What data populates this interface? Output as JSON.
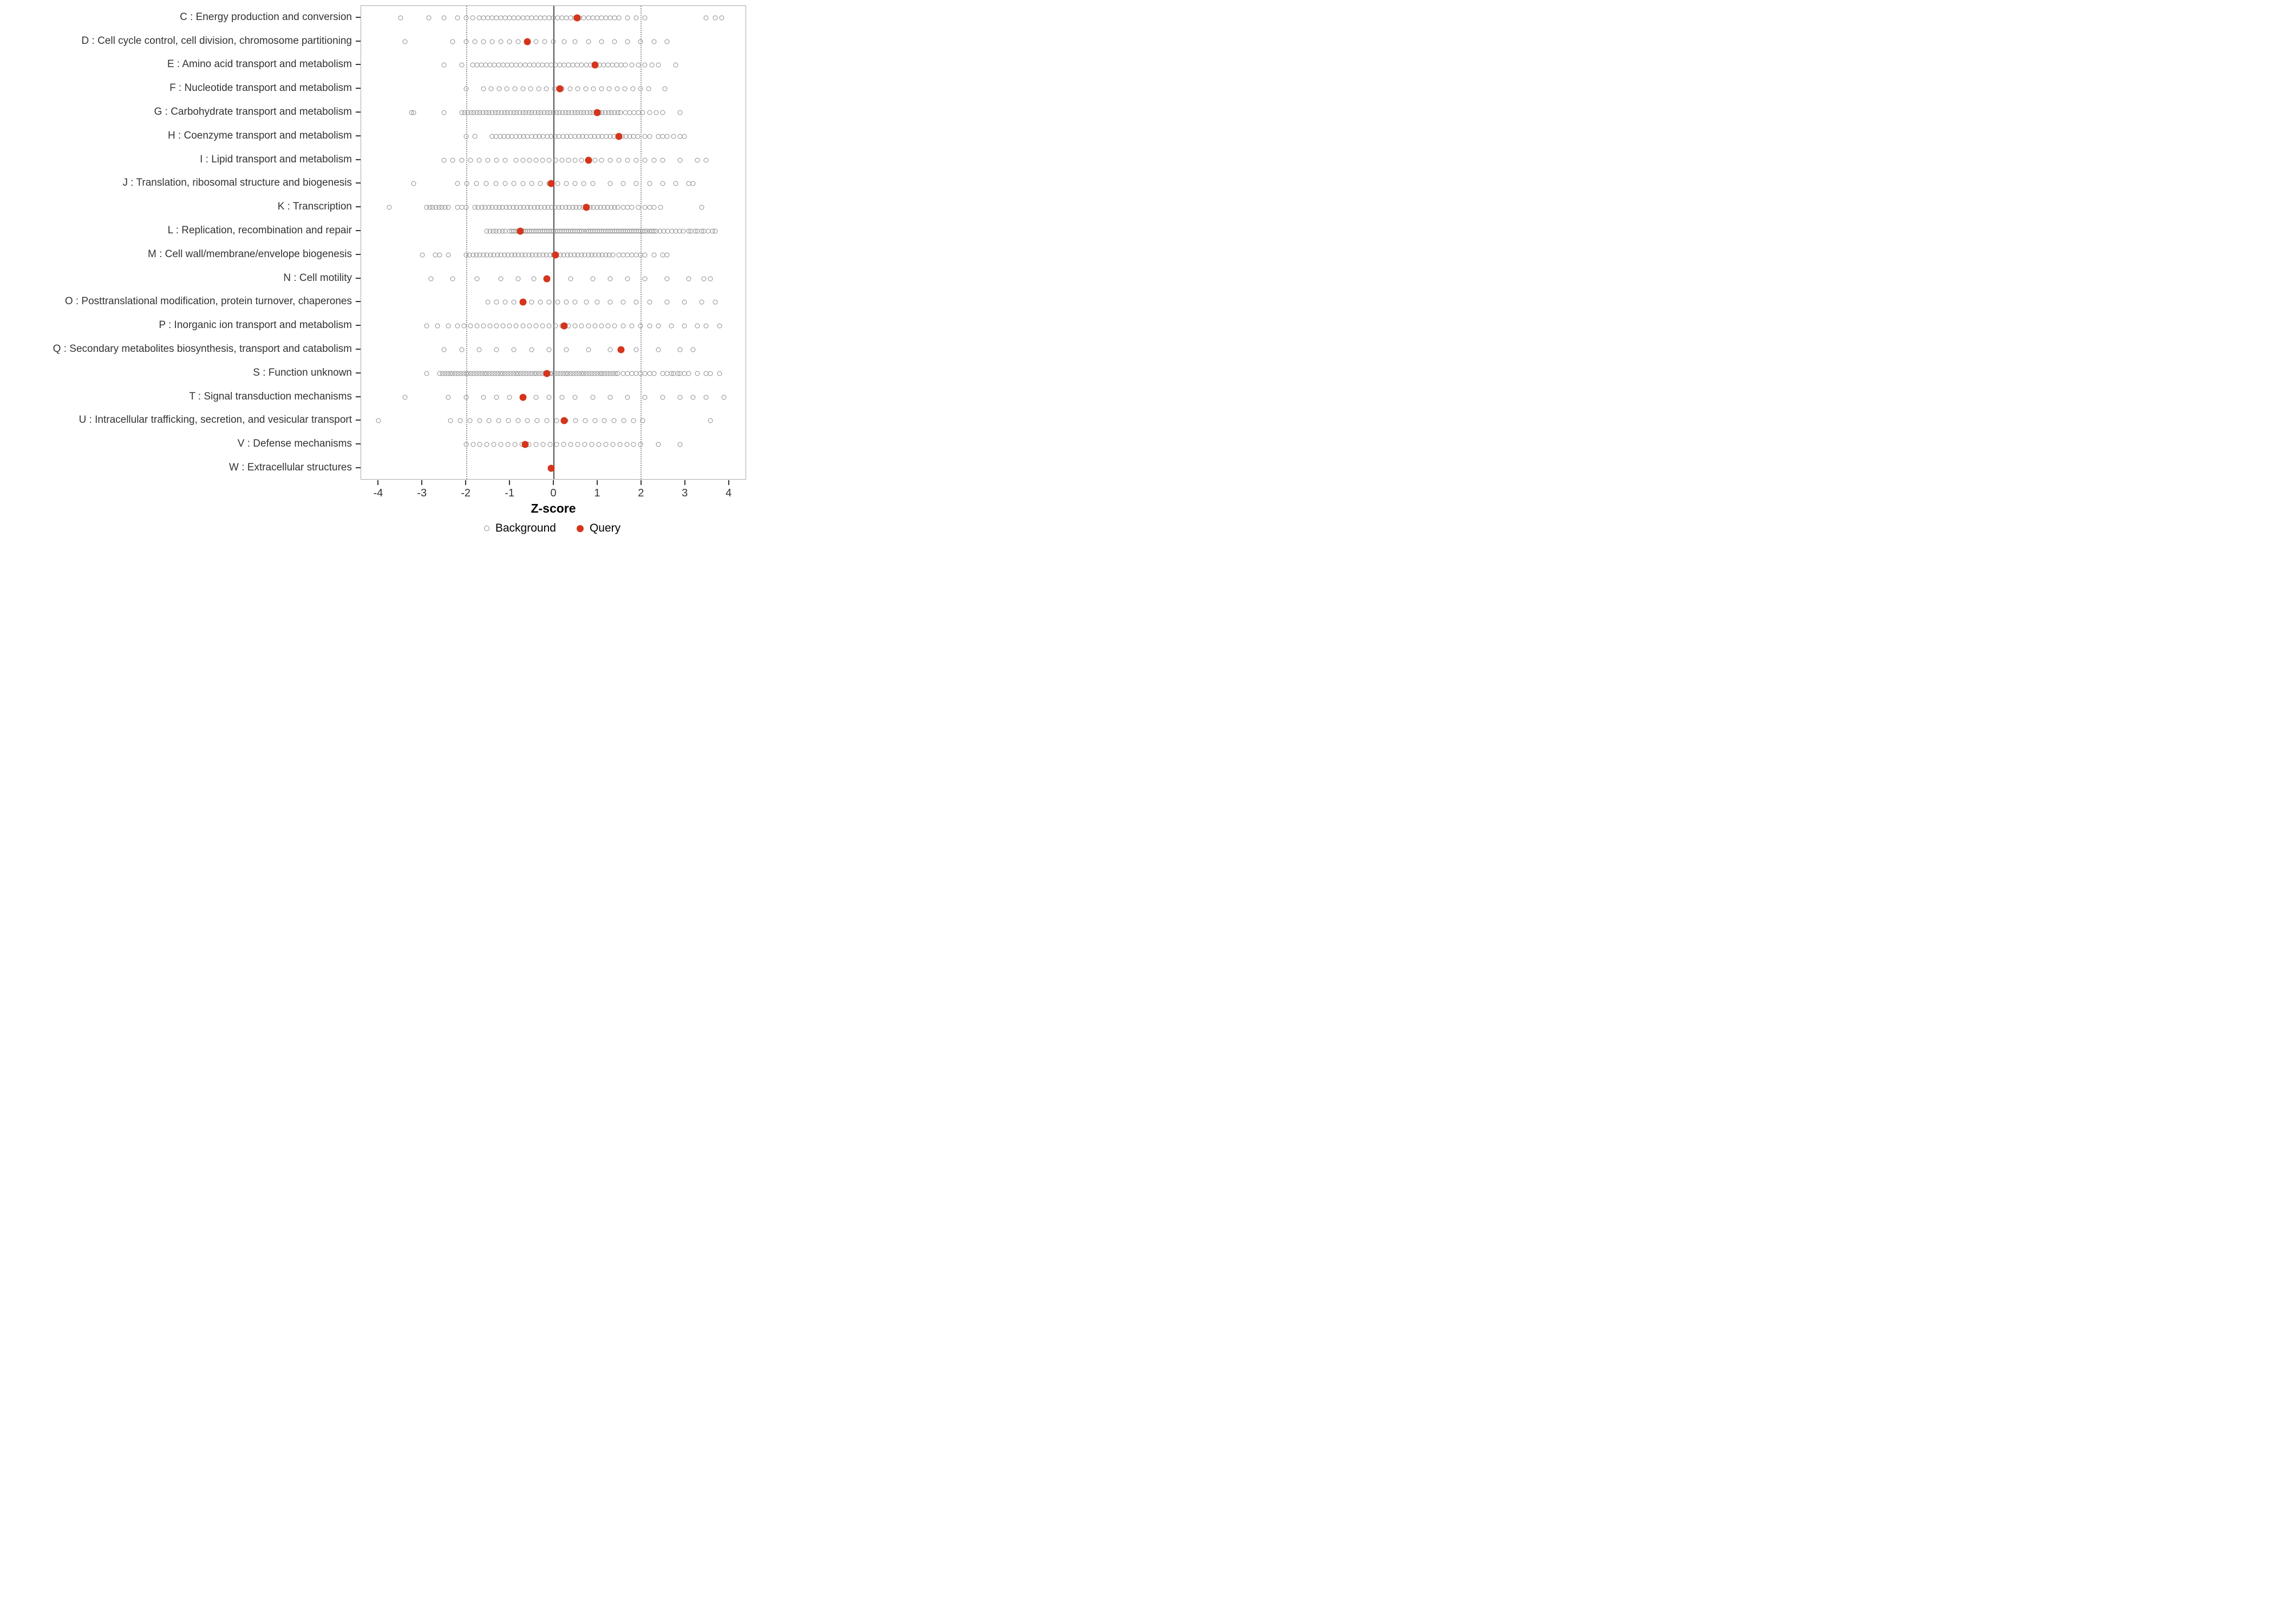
{
  "chart_data": {
    "type": "scatter",
    "title": "",
    "xlabel": "Z-score",
    "ylabel": "",
    "xlim": [
      -4.4,
      4.4
    ],
    "x_ticks": [
      -4,
      -3,
      -2,
      -1,
      0,
      1,
      2,
      3,
      4
    ],
    "grid": false,
    "legend_position": "bottom",
    "legend_labels": {
      "background": "Background",
      "query": "Query"
    },
    "reference_lines": {
      "solid": [
        0
      ],
      "dotted": [
        -2,
        2
      ]
    },
    "colors": {
      "background": "#8a8a8a",
      "query": "#D4351C",
      "zero_line": "#4d4d4d",
      "dotted_line": "#949494",
      "axis_text": "#333333"
    },
    "categories": [
      {
        "code": "C",
        "label": "C : Energy production and conversion",
        "query": 0.55,
        "background": [
          -3.5,
          -2.85,
          -2.5,
          -2.2,
          -2.0,
          -1.85,
          1.7,
          1.9,
          2.1,
          3.5,
          3.7,
          3.85
        ],
        "background_runs": [
          [
            -1.7,
            1.55,
            0.1
          ]
        ]
      },
      {
        "code": "D",
        "label": "D : Cell cycle control, cell division, chromosome partitioning",
        "query": -0.6,
        "background": [
          -3.4,
          -2.3,
          0.25,
          0.5,
          0.8,
          1.1,
          1.4,
          1.7,
          2.0,
          2.3,
          2.6
        ],
        "background_runs": [
          [
            -2.0,
            0.1,
            0.2
          ]
        ]
      },
      {
        "code": "E",
        "label": "E : Amino acid transport and metabolism",
        "query": 0.95,
        "background": [
          -2.5,
          -2.1,
          1.8,
          1.95,
          2.1,
          2.25,
          2.4,
          2.8
        ],
        "background_runs": [
          [
            -1.85,
            1.7,
            0.1
          ]
        ]
      },
      {
        "code": "F",
        "label": "F : Nucleotide transport and metabolism",
        "query": 0.15,
        "background": [
          -2.0,
          2.55
        ],
        "background_runs": [
          [
            -1.6,
            2.3,
            0.18
          ]
        ]
      },
      {
        "code": "G",
        "label": "G : Carbohydrate transport and metabolism",
        "query": 1.0,
        "background": [
          -3.25,
          -3.2,
          -2.5,
          1.65,
          1.75,
          1.85,
          1.95,
          2.05,
          2.2,
          2.35,
          2.5,
          2.9
        ],
        "background_runs": [
          [
            -2.1,
            1.55,
            0.07
          ]
        ]
      },
      {
        "code": "H",
        "label": "H : Coenzyme transport and metabolism",
        "query": 1.5,
        "background": [
          -2.0,
          -1.8,
          2.1,
          2.2,
          2.4,
          2.5,
          2.6,
          2.75,
          2.9,
          3.0
        ],
        "background_runs": [
          [
            -1.4,
            2.0,
            0.09
          ]
        ]
      },
      {
        "code": "I",
        "label": "I : Lipid transport and metabolism",
        "query": 0.8,
        "background": [
          2.9,
          3.3,
          3.5
        ],
        "background_runs": [
          [
            -2.5,
            -1.0,
            0.2
          ],
          [
            -0.85,
            1.1,
            0.15
          ],
          [
            1.3,
            2.5,
            0.2
          ]
        ]
      },
      {
        "code": "J",
        "label": "J : Translation, ribosomal structure and biogenesis",
        "query": -0.05,
        "background": [
          -3.2,
          3.1,
          3.2
        ],
        "background_runs": [
          [
            -2.2,
            -1.0,
            0.22
          ],
          [
            -0.9,
            1.0,
            0.2
          ],
          [
            1.3,
            2.8,
            0.3
          ]
        ]
      },
      {
        "code": "K",
        "label": "K : Transcription",
        "query": 0.75,
        "background": [
          -3.75,
          -2.2,
          -2.1,
          -2.0,
          1.6,
          1.7,
          1.8,
          1.95,
          2.1,
          2.2,
          2.3,
          2.45,
          3.4
        ],
        "background_runs": [
          [
            -2.9,
            -2.4,
            0.07
          ],
          [
            -1.8,
            1.5,
            0.08
          ]
        ]
      },
      {
        "code": "L",
        "label": "L : Replication, recombination and repair",
        "query": -0.75,
        "background": [
          3.1,
          3.15,
          3.25,
          3.3,
          3.4,
          3.45,
          3.55,
          3.65,
          3.7
        ],
        "background_runs": [
          [
            -1.52,
            -1.05,
            0.07
          ],
          [
            -1.0,
            2.3,
            0.05
          ],
          [
            2.35,
            3.0,
            0.09
          ]
        ]
      },
      {
        "code": "M",
        "label": "M : Cell wall/membrane/envelope biogenesis",
        "query": 0.05,
        "background": [
          -3.0,
          -2.7,
          -2.6,
          -2.4,
          1.5,
          1.6,
          1.7,
          1.8,
          1.9,
          2.0,
          2.1,
          2.3,
          2.5,
          2.6
        ],
        "background_runs": [
          [
            -2.0,
            1.4,
            0.08
          ]
        ]
      },
      {
        "code": "N",
        "label": "N : Cell motility",
        "query": -0.15,
        "background": [
          -2.8,
          -2.3,
          -1.75,
          -1.2,
          -0.8,
          -0.45,
          0.4,
          0.9,
          1.3,
          1.7,
          2.1,
          2.6,
          3.1,
          3.45,
          3.6
        ],
        "background_runs": []
      },
      {
        "code": "O",
        "label": "O : Posttranslational modification, protein turnover, chaperones",
        "query": -0.7,
        "background": [
          -1.5,
          -1.3,
          -1.1,
          -0.9,
          -0.7,
          -0.5,
          -0.3,
          -0.1,
          0.1,
          0.3,
          0.5,
          0.75,
          1.0,
          1.3,
          1.6,
          1.9,
          2.2,
          2.6,
          3.0,
          3.4,
          3.7
        ],
        "background_runs": []
      },
      {
        "code": "P",
        "label": "P : Inorganic ion transport and metabolism",
        "query": 0.25,
        "background": [
          -2.9,
          -2.65,
          -2.4,
          1.6,
          1.8,
          2.0,
          2.2,
          2.4,
          2.7,
          3.0,
          3.3,
          3.5,
          3.8
        ],
        "background_runs": [
          [
            -2.2,
            1.45,
            0.15
          ]
        ]
      },
      {
        "code": "Q",
        "label": "Q : Secondary metabolites biosynthesis, transport and catabolism",
        "query": 1.55,
        "background": [
          -2.5,
          -2.1,
          -1.7,
          -1.3,
          -0.9,
          -0.5,
          -0.1,
          0.3,
          0.8,
          1.3,
          1.9,
          2.4,
          2.9,
          3.2
        ],
        "background_runs": []
      },
      {
        "code": "S",
        "label": "S : Function unknown",
        "query": -0.15,
        "background": [
          -2.9,
          2.1,
          2.2,
          2.3,
          2.5,
          2.6,
          2.7,
          2.75,
          2.85,
          2.9,
          3.0,
          3.1,
          3.3,
          3.5,
          3.6,
          3.8
        ],
        "background_runs": [
          [
            -2.6,
            1.5,
            0.06
          ],
          [
            1.6,
            2.0,
            0.1
          ]
        ]
      },
      {
        "code": "T",
        "label": "T : Signal transduction mechanisms",
        "query": -0.7,
        "background": [
          -3.4,
          -2.4,
          -2.0,
          -1.6,
          -1.3,
          -1.0,
          -0.7,
          -0.4,
          -0.1,
          0.2,
          0.5,
          0.9,
          1.3,
          1.7,
          2.1,
          2.5,
          2.9,
          3.2,
          3.5,
          3.9
        ],
        "background_runs": []
      },
      {
        "code": "U",
        "label": "U : Intracellular trafficking, secretion, and vesicular transport",
        "query": 0.25,
        "background": [
          -4.0,
          3.6
        ],
        "background_runs": [
          [
            -2.35,
            2.1,
            0.22
          ]
        ]
      },
      {
        "code": "V",
        "label": "V : Defense mechanisms",
        "query": -0.65,
        "background": [
          2.4,
          2.9
        ],
        "background_runs": [
          [
            -2.0,
            2.15,
            0.16
          ]
        ]
      },
      {
        "code": "W",
        "label": "W : Extracellular structures",
        "query": -0.05,
        "background": [],
        "background_runs": []
      }
    ]
  }
}
